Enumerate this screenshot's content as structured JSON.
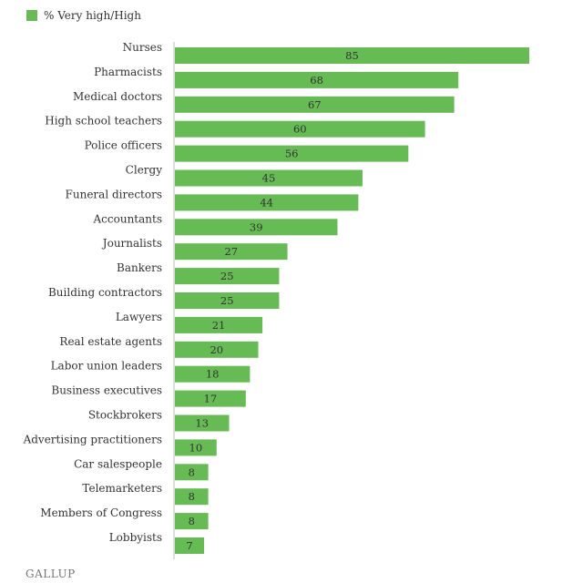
{
  "chart_data": {
    "type": "bar",
    "orientation": "horizontal",
    "categories": [
      "Nurses",
      "Pharmacists",
      "Medical doctors",
      "High school teachers",
      "Police officers",
      "Clergy",
      "Funeral directors",
      "Accountants",
      "Journalists",
      "Bankers",
      "Building contractors",
      "Lawyers",
      "Real estate agents",
      "Labor union leaders",
      "Business executives",
      "Stockbrokers",
      "Advertising practitioners",
      "Car salespeople",
      "Telemarketers",
      "Members of Congress",
      "Lobbyists"
    ],
    "series": [
      {
        "name": "% Very high/High",
        "values": [
          85,
          68,
          67,
          60,
          56,
          45,
          44,
          39,
          27,
          25,
          25,
          21,
          20,
          18,
          17,
          13,
          10,
          8,
          8,
          8,
          7
        ],
        "color": "#66bb55"
      }
    ],
    "xlim": [
      0,
      85
    ],
    "grid": false,
    "legend": "top-left",
    "data_labels": true
  },
  "legend": {
    "label": "% Very high/High",
    "color": "#66bb55"
  },
  "footer": {
    "logo": "GALLUP"
  }
}
